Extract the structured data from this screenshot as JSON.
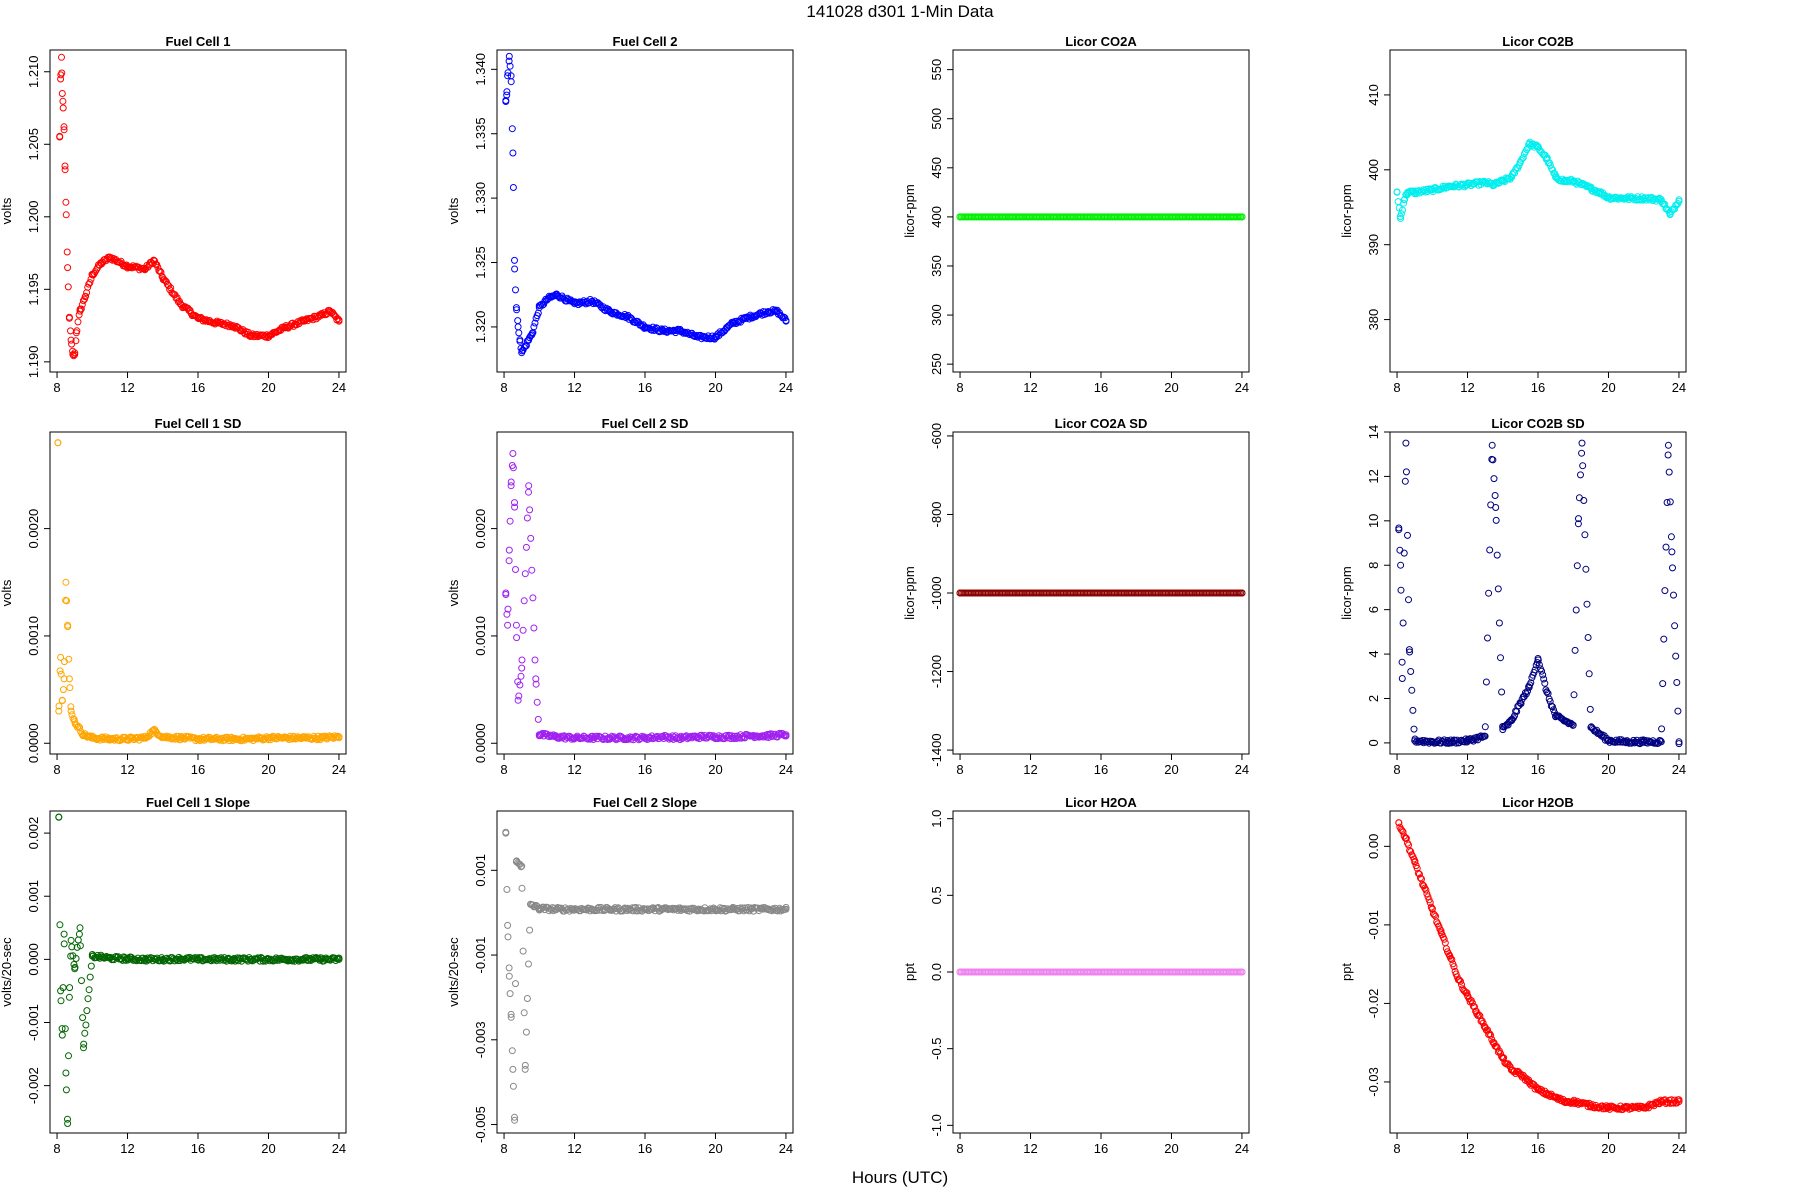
{
  "page": {
    "title": "141028   d301   1-Min Data",
    "xlabel": "Hours (UTC)"
  },
  "chart_data": [
    {
      "type": "scatter",
      "title": "Fuel Cell 1",
      "ylabel": "volts",
      "color": "#ff0000",
      "xlim": [
        7.6,
        24.4
      ],
      "xticks": [
        8,
        12,
        16,
        20,
        24
      ],
      "ylim": [
        1.1893,
        1.2115
      ],
      "yticks": [
        1.19,
        1.195,
        1.2,
        1.205,
        1.21
      ],
      "ytick_labels": [
        "1.190",
        "1.195",
        "1.200",
        "1.205",
        "1.210"
      ],
      "xlabel": "Hours (UTC)",
      "series": [
        {
          "x": [
            8.15,
            8.2,
            8.25,
            8.3,
            8.35,
            8.4,
            8.45,
            8.5,
            8.6,
            8.7,
            8.8,
            8.9,
            9.0,
            9.1,
            9.3,
            9.6,
            10.0,
            10.5,
            11.0,
            12.0,
            13.0,
            13.5,
            14.0,
            15.0,
            16.0,
            17.0,
            18.0,
            19.0,
            20.0,
            21.0,
            22.0,
            23.0,
            23.5,
            24.0
          ],
          "y": [
            1.2055,
            1.2095,
            1.211,
            1.2085,
            1.2075,
            1.206,
            1.2035,
            1.201,
            1.1965,
            1.193,
            1.1915,
            1.1905,
            1.1905,
            1.192,
            1.1935,
            1.1945,
            1.196,
            1.1968,
            1.1972,
            1.1966,
            1.1964,
            1.197,
            1.1958,
            1.194,
            1.193,
            1.1927,
            1.1925,
            1.1918,
            1.1918,
            1.1924,
            1.1928,
            1.1932,
            1.1935,
            1.1928
          ]
        }
      ]
    },
    {
      "type": "scatter",
      "title": "Fuel Cell 2",
      "ylabel": "volts",
      "color": "#0000ff",
      "xlim": [
        7.6,
        24.4
      ],
      "xticks": [
        8,
        12,
        16,
        20,
        24
      ],
      "ylim": [
        1.3165,
        1.3415
      ],
      "yticks": [
        1.32,
        1.325,
        1.33,
        1.335,
        1.34
      ],
      "ytick_labels": [
        "1.320",
        "1.325",
        "1.330",
        "1.335",
        "1.340"
      ],
      "xlabel": "Hours (UTC)",
      "series": [
        {
          "x": [
            8.1,
            8.15,
            8.2,
            8.3,
            8.4,
            8.5,
            8.6,
            8.7,
            8.8,
            8.9,
            9.0,
            9.2,
            9.4,
            9.6,
            10.0,
            10.5,
            11.0,
            12.0,
            13.0,
            14.0,
            15.0,
            16.0,
            17.0,
            18.0,
            19.0,
            20.0,
            21.0,
            22.0,
            23.0,
            23.5,
            24.0
          ],
          "y": [
            1.3375,
            1.338,
            1.3395,
            1.341,
            1.3395,
            1.3335,
            1.3245,
            1.3215,
            1.32,
            1.319,
            1.318,
            1.3185,
            1.319,
            1.3195,
            1.3215,
            1.3222,
            1.3225,
            1.3218,
            1.322,
            1.3212,
            1.3208,
            1.32,
            1.3197,
            1.3197,
            1.3192,
            1.3192,
            1.3203,
            1.3208,
            1.3212,
            1.3212,
            1.3205
          ]
        }
      ]
    },
    {
      "type": "scatter",
      "title": "Licor CO2A",
      "ylabel": "licor-ppm",
      "color": "#00ee00",
      "xlim": [
        7.6,
        24.4
      ],
      "xticks": [
        8,
        12,
        16,
        20,
        24
      ],
      "ylim": [
        242,
        570
      ],
      "yticks": [
        250,
        300,
        350,
        400,
        450,
        500,
        550
      ],
      "ytick_labels": [
        "250",
        "300",
        "350",
        "400",
        "450",
        "500",
        "550"
      ],
      "xlabel": "Hours (UTC)",
      "series": [
        {
          "x": [
            8,
            24
          ],
          "y": [
            400,
            400
          ]
        }
      ]
    },
    {
      "type": "scatter",
      "title": "Licor CO2B",
      "ylabel": "licor-ppm",
      "color": "#00eeee",
      "xlim": [
        7.6,
        24.4
      ],
      "xticks": [
        8,
        12,
        16,
        20,
        24
      ],
      "ylim": [
        373,
        416
      ],
      "yticks": [
        380,
        390,
        400,
        410
      ],
      "ytick_labels": [
        "380",
        "390",
        "400",
        "410"
      ],
      "xlabel": "Hours (UTC)",
      "series": [
        {
          "x": [
            8.0,
            8.2,
            8.4,
            8.6,
            9.0,
            10.0,
            11.0,
            12.0,
            13.0,
            13.5,
            14.0,
            14.5,
            15.0,
            15.5,
            16.0,
            16.5,
            17.0,
            17.5,
            18.0,
            18.5,
            19.0,
            19.5,
            20.0,
            21.0,
            22.0,
            23.0,
            23.5,
            24.0
          ],
          "y": [
            397.0,
            393.5,
            396.0,
            397.0,
            397.0,
            397.3,
            397.8,
            398.0,
            398.3,
            398.0,
            398.5,
            399.0,
            401.0,
            403.5,
            403.0,
            401.5,
            399.0,
            398.5,
            398.5,
            398.0,
            397.5,
            397.0,
            396.3,
            396.2,
            396.2,
            396.0,
            394.0,
            396.0
          ]
        }
      ]
    },
    {
      "type": "scatter",
      "title": "Fuel Cell 1 SD",
      "ylabel": "volts",
      "color": "#ffa500",
      "xlim": [
        7.6,
        24.4
      ],
      "xticks": [
        8,
        12,
        16,
        20,
        24
      ],
      "ylim": [
        -0.0001,
        0.0029
      ],
      "yticks": [
        0.0,
        0.001,
        0.002
      ],
      "ytick_labels": [
        "0.0000",
        "0.0010",
        "0.0020"
      ],
      "xlabel": "Hours (UTC)",
      "series": [
        {
          "x": [
            8.05,
            8.1,
            8.2,
            8.3,
            8.4,
            8.5,
            8.6,
            8.7,
            8.8,
            9.0,
            9.5,
            10,
            11,
            12,
            13,
            13.5,
            14,
            15,
            16,
            17,
            18,
            19,
            20,
            21,
            22,
            23,
            24
          ],
          "y": [
            0.0028,
            0.0003,
            0.0008,
            0.0004,
            0.0006,
            0.0015,
            0.0011,
            0.0006,
            0.0003,
            0.0002,
            8e-05,
            5e-05,
            4e-05,
            4e-05,
            5e-05,
            0.00012,
            6e-05,
            5e-05,
            4e-05,
            4e-05,
            4e-05,
            4e-05,
            5e-05,
            5e-05,
            5e-05,
            5e-05,
            6e-05
          ]
        }
      ]
    },
    {
      "type": "scatter",
      "title": "Fuel Cell 2 SD",
      "ylabel": "volts",
      "color": "#a020f0",
      "xlim": [
        7.6,
        24.4
      ],
      "xticks": [
        8,
        12,
        16,
        20,
        24
      ],
      "ylim": [
        -0.0001,
        0.0029
      ],
      "yticks": [
        0.0,
        0.001,
        0.002
      ],
      "ytick_labels": [
        "0.0000",
        "0.0010",
        "0.0020"
      ],
      "xlabel": "Hours (UTC)",
      "series": [
        {
          "x": [
            8.1,
            8.2,
            8.3,
            8.4,
            8.5,
            8.6,
            8.7,
            8.8,
            9.0,
            9.4,
            9.8,
            10,
            11,
            12,
            13,
            14,
            15,
            16,
            17,
            18,
            19,
            20,
            21,
            22,
            23,
            24
          ],
          "y": [
            0.0014,
            0.0011,
            0.0018,
            0.0024,
            0.0027,
            0.0022,
            0.0011,
            0.0004,
            0.0007,
            0.0024,
            0.0006,
            8e-05,
            6e-05,
            5e-05,
            5e-05,
            5e-05,
            5e-05,
            5e-05,
            6e-05,
            5e-05,
            6e-05,
            6e-05,
            6e-05,
            7e-05,
            7e-05,
            8e-05
          ]
        }
      ]
    },
    {
      "type": "scatter",
      "title": "Licor CO2A SD",
      "ylabel": "licor-ppm",
      "color": "#8b0000",
      "xlim": [
        7.6,
        24.4
      ],
      "xticks": [
        8,
        12,
        16,
        20,
        24
      ],
      "ylim": [
        -1410,
        -590
      ],
      "yticks": [
        -1400,
        -1200,
        -1000,
        -800,
        -600
      ],
      "ytick_labels": [
        "-1400",
        "-1200",
        "-1000",
        "-800",
        "-600"
      ],
      "xlabel": "Hours (UTC)",
      "series": [
        {
          "x": [
            8,
            24
          ],
          "y": [
            -1000,
            -1000
          ]
        }
      ]
    },
    {
      "type": "scatter",
      "title": "Licor CO2B SD",
      "ylabel": "licor-ppm",
      "color": "#000080",
      "xlim": [
        7.6,
        24.4
      ],
      "xticks": [
        8,
        12,
        16,
        20,
        24
      ],
      "ylim": [
        -0.5,
        14
      ],
      "yticks": [
        0,
        2,
        4,
        6,
        8,
        10,
        12,
        14
      ],
      "ytick_labels": [
        "0",
        "2",
        "4",
        "6",
        "8",
        "10",
        "12",
        "14"
      ],
      "xlabel": "Hours (UTC)",
      "series": [
        {
          "x": [
            8.1,
            8.2,
            8.3,
            8.5,
            8.7,
            9,
            10,
            11,
            12,
            13,
            13.4,
            13.6,
            14,
            14.5,
            15,
            15.5,
            16,
            16.5,
            17,
            17.5,
            18,
            18.3,
            18.5,
            19,
            19.5,
            20,
            21,
            22,
            23,
            23.4,
            23.6,
            24
          ],
          "y": [
            9.6,
            8.0,
            2.9,
            13.5,
            4.2,
            0.1,
            0.05,
            0.05,
            0.1,
            0.3,
            13.4,
            10.6,
            0.6,
            1.0,
            1.8,
            2.5,
            3.8,
            2.3,
            1.2,
            1.0,
            0.8,
            10.1,
            13.5,
            0.7,
            0.4,
            0.1,
            0.05,
            0.05,
            0.05,
            13.4,
            8.6,
            0.05
          ]
        }
      ]
    },
    {
      "type": "scatter",
      "title": "Fuel Cell 1 Slope",
      "ylabel": "volts/20-sec",
      "color": "#006400",
      "xlim": [
        7.6,
        24.4
      ],
      "xticks": [
        8,
        12,
        16,
        20,
        24
      ],
      "ylim": [
        -0.00275,
        0.00235
      ],
      "yticks": [
        -0.002,
        -0.001,
        0.0,
        0.001,
        0.002
      ],
      "ytick_labels": [
        "-0.002",
        "-0.001",
        "0.000",
        "0.001",
        "0.002"
      ],
      "xlabel": "Hours (UTC)",
      "series": [
        {
          "x": [
            8.1,
            8.2,
            8.3,
            8.4,
            8.5,
            8.6,
            8.7,
            8.8,
            9.0,
            9.3,
            9.5,
            10,
            11,
            12,
            13,
            14,
            15,
            16,
            17,
            18,
            19,
            20,
            21,
            22,
            23,
            24
          ],
          "y": [
            0.00225,
            -0.0005,
            -0.0012,
            0.0004,
            -0.0018,
            -0.0026,
            -0.0006,
            0.0003,
            -0.00015,
            0.0005,
            -0.0014,
            5e-05,
            2e-05,
            1e-05,
            0.0,
            0.0,
            1e-05,
            0.0,
            0.0,
            0.0,
            0.0,
            0.0,
            0.0,
            0.0,
            0.0,
            0.0
          ]
        }
      ]
    },
    {
      "type": "scatter",
      "title": "Fuel Cell 2 Slope",
      "ylabel": "volts/20-sec",
      "color": "#888888",
      "xlim": [
        7.6,
        24.4
      ],
      "xticks": [
        8,
        12,
        16,
        20,
        24
      ],
      "ylim": [
        -0.0052,
        0.0024
      ],
      "yticks": [
        -0.005,
        -0.003,
        -0.001,
        0.001
      ],
      "ytick_labels": [
        "-0.005",
        "-0.003",
        "-0.001",
        "0.001"
      ],
      "xlabel": "Hours (UTC)",
      "series": [
        {
          "x": [
            8.1,
            8.2,
            8.3,
            8.4,
            8.5,
            8.6,
            8.7,
            9.0,
            9.2,
            9.5,
            10,
            11,
            12,
            13,
            14,
            15,
            16,
            17,
            18,
            19,
            20,
            21,
            22,
            23,
            24
          ],
          "y": [
            0.0019,
            -0.0003,
            -0.0015,
            -0.0024,
            -0.0037,
            -0.0049,
            0.0012,
            0.0011,
            -0.0037,
            0.0002,
            0.0001,
            8e-05,
            8e-05,
            8e-05,
            8e-05,
            8e-05,
            8e-05,
            8e-05,
            8e-05,
            8e-05,
            8e-05,
            8e-05,
            8e-05,
            8e-05,
            8e-05
          ]
        }
      ]
    },
    {
      "type": "scatter",
      "title": "Licor H2OA",
      "ylabel": "ppt",
      "color": "#ee82ee",
      "xlim": [
        7.6,
        24.4
      ],
      "xticks": [
        8,
        12,
        16,
        20,
        24
      ],
      "ylim": [
        -1.05,
        1.05
      ],
      "yticks": [
        -1.0,
        -0.5,
        0.0,
        0.5,
        1.0
      ],
      "ytick_labels": [
        "-1.0",
        "-0.5",
        "0.0",
        "0.5",
        "1.0"
      ],
      "xlabel": "Hours (UTC)",
      "series": [
        {
          "x": [
            8,
            24
          ],
          "y": [
            0,
            0
          ]
        }
      ]
    },
    {
      "type": "scatter",
      "title": "Licor H2OB",
      "ylabel": "ppt",
      "color": "#ff0000",
      "xlim": [
        7.6,
        24.4
      ],
      "xticks": [
        8,
        12,
        16,
        20,
        24
      ],
      "ylim": [
        -0.0365,
        0.0045
      ],
      "yticks": [
        -0.03,
        -0.02,
        -0.01,
        0.0
      ],
      "ytick_labels": [
        "-0.03",
        "-0.02",
        "-0.01",
        "0.00"
      ],
      "xlabel": "Hours (UTC)",
      "series": [
        {
          "x": [
            8.1,
            8.5,
            9,
            9.5,
            10,
            10.5,
            11,
            11.5,
            12,
            12.5,
            13,
            13.5,
            14,
            14.5,
            15,
            15.5,
            16,
            16.5,
            17,
            17.5,
            18,
            19,
            20,
            21,
            22,
            23,
            24
          ],
          "y": [
            0.003,
            0.001,
            -0.002,
            -0.005,
            -0.008,
            -0.011,
            -0.014,
            -0.017,
            -0.019,
            -0.021,
            -0.023,
            -0.025,
            -0.027,
            -0.0285,
            -0.029,
            -0.03,
            -0.031,
            -0.0315,
            -0.032,
            -0.0325,
            -0.0325,
            -0.033,
            -0.0333,
            -0.0333,
            -0.0333,
            -0.0325,
            -0.0325
          ]
        }
      ]
    }
  ]
}
